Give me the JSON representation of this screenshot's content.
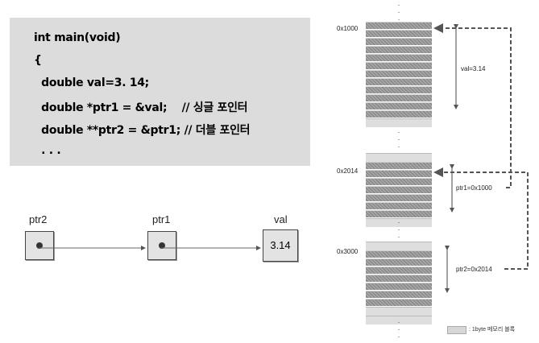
{
  "code": {
    "lines": [
      "int main(void)",
      "{",
      "  double val=3. 14;",
      "  double *ptr1 = &val;    // 싱글 포인터",
      "  double **ptr2 = &ptr1; // 더블 포인터",
      "  . . ."
    ]
  },
  "pointer_chain": {
    "ptr2_label": "ptr2",
    "ptr1_label": "ptr1",
    "val_label": "val",
    "val_value": "3.14"
  },
  "memory": {
    "addr_1": "0x1000",
    "addr_2": "0x2014",
    "addr_3": "0x3000",
    "label_val": "val=3.14",
    "label_ptr1": "ptr1=0x1000",
    "label_ptr2": "ptr2=0x2014",
    "legend": ": 1byte 메모리 블록"
  }
}
